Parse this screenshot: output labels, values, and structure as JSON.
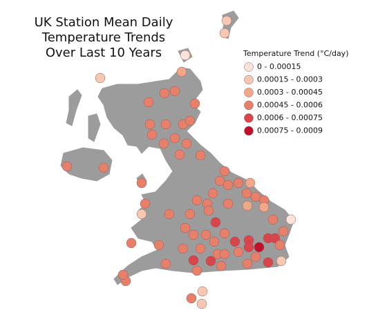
{
  "title_lines": [
    "UK Station Mean Daily",
    "Temperature Trends",
    "Over Last 10 Years"
  ],
  "legend": {
    "title": "Temperature Trend (°C/day)",
    "items": [
      {
        "label": "0 - 0.00015",
        "color": "#fbe3dc"
      },
      {
        "label": "0.00015 - 0.0003",
        "color": "#f6c7b2"
      },
      {
        "label": "0.0003 - 0.00045",
        "color": "#f0a889"
      },
      {
        "label": "0.00045 - 0.0006",
        "color": "#e6806b"
      },
      {
        "label": "0.0006 - 0.00075",
        "color": "#d8464c"
      },
      {
        "label": "0.00075 - 0.0009",
        "color": "#c0102c"
      }
    ]
  }
}
